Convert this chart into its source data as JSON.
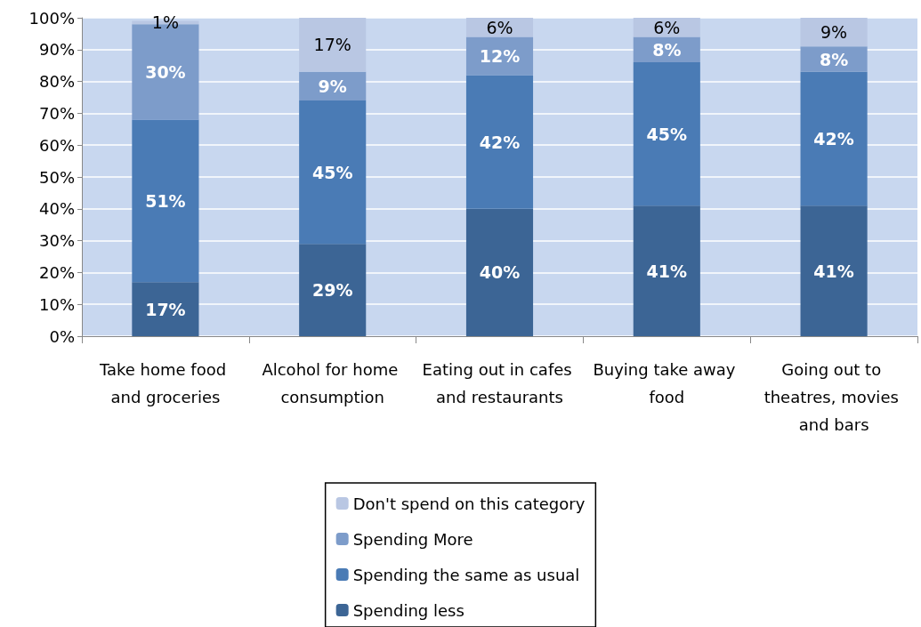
{
  "chart_data": {
    "type": "bar",
    "stacked": true,
    "categories": [
      "Take home food and groceries",
      "Alcohol for home consumption",
      "Eating out in cafes and restaurants",
      "Buying take away food",
      "Going out to theatres, movies and bars"
    ],
    "series": [
      {
        "name": "Spending less",
        "color": "#3c6595",
        "values": [
          17,
          29,
          40,
          41,
          41
        ],
        "value_labels": [
          "17%",
          "29%",
          "40%",
          "41%",
          "41%"
        ]
      },
      {
        "name": "Spending the same as usual",
        "color": "#4a7bb5",
        "values": [
          51,
          45,
          42,
          45,
          42
        ],
        "value_labels": [
          "51%",
          "45%",
          "42%",
          "45%",
          "42%"
        ]
      },
      {
        "name": "Spending More",
        "color": "#7d9cca",
        "values": [
          30,
          9,
          12,
          8,
          8
        ],
        "value_labels": [
          "30%",
          "9%",
          "12%",
          "8%",
          "8%"
        ]
      },
      {
        "name": "Don't spend on this category",
        "color": "#b9c7e3",
        "values": [
          1,
          17,
          6,
          6,
          9
        ],
        "value_labels": [
          "1%",
          "17%",
          "6%",
          "6%",
          "9%"
        ]
      }
    ],
    "ylim": [
      0,
      100
    ],
    "yticks": [
      {
        "value": 0,
        "label": "0%"
      },
      {
        "value": 10,
        "label": "10%"
      },
      {
        "value": 20,
        "label": "20%"
      },
      {
        "value": 30,
        "label": "30%"
      },
      {
        "value": 40,
        "label": "40%"
      },
      {
        "value": 50,
        "label": "50%"
      },
      {
        "value": 60,
        "label": "60%"
      },
      {
        "value": 70,
        "label": "70%"
      },
      {
        "value": 80,
        "label": "80%"
      },
      {
        "value": 90,
        "label": "90%"
      },
      {
        "value": 100,
        "label": "100%"
      }
    ],
    "grid": "y",
    "legend": "bottom"
  }
}
